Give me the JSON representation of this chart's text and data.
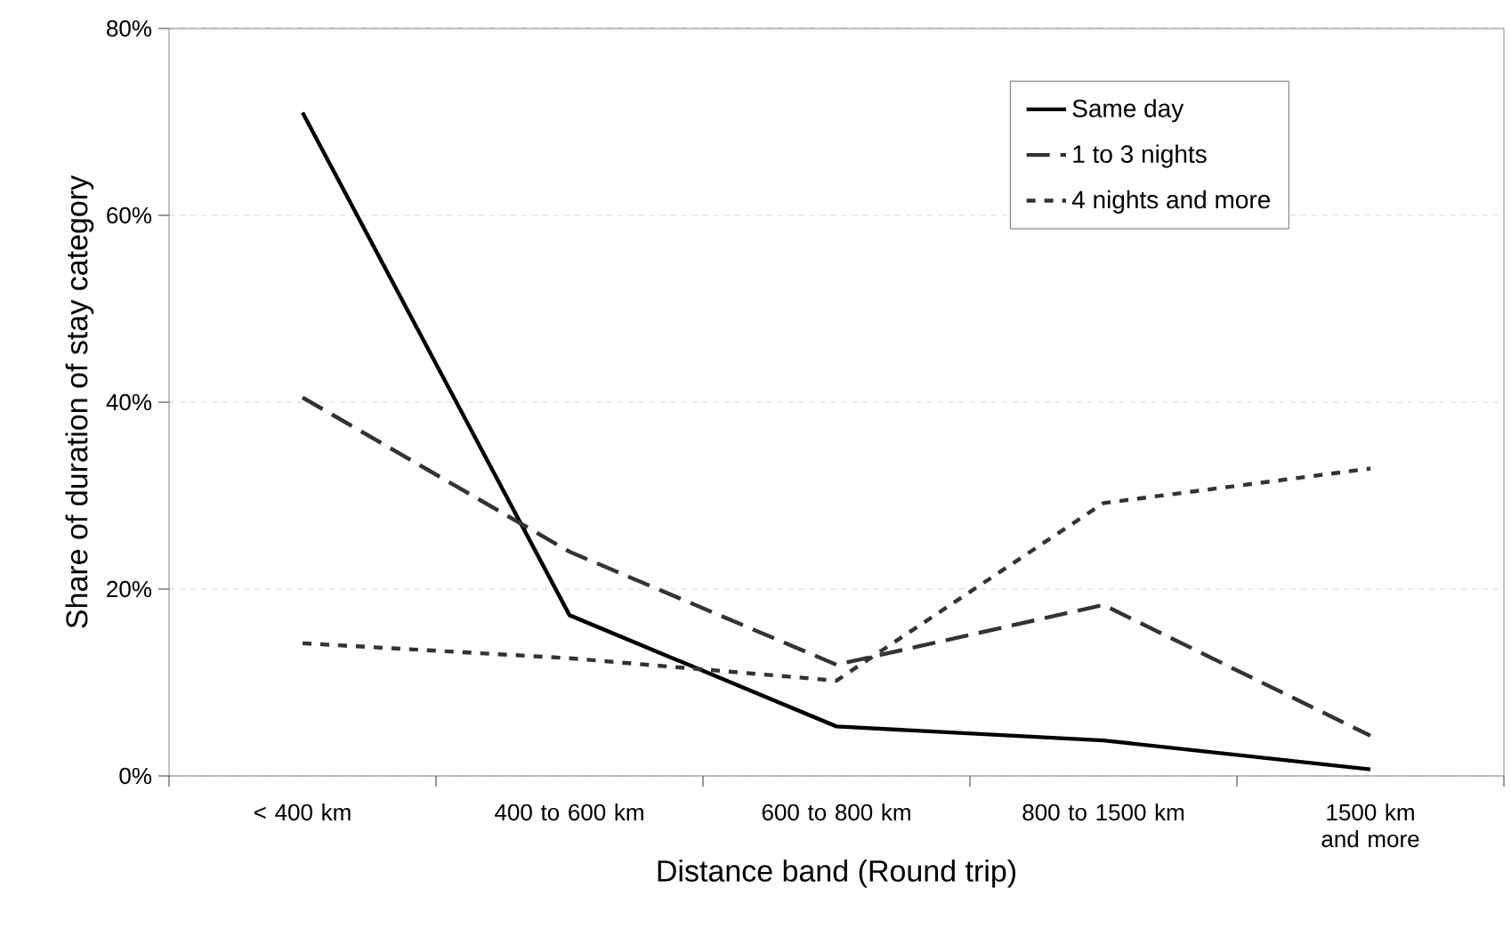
{
  "chart_data": {
    "type": "line",
    "xlabel": "Distance band (Round trip)",
    "ylabel": "Share of duration of stay category",
    "categories": [
      "< 400 km",
      "400 to 600 km",
      "600 to 800 km",
      "800 to 1500 km",
      "1500 km and more"
    ],
    "series": [
      {
        "name": "Same day",
        "color": "#000000",
        "line_style": "solid",
        "values": [
          71.0,
          17.2,
          5.3,
          3.8,
          0.7
        ]
      },
      {
        "name": "1 to 3 nights",
        "color": "#333333",
        "line_style": "dashed",
        "values": [
          40.5,
          24.0,
          11.9,
          18.3,
          4.3
        ]
      },
      {
        "name": "4 nights and more",
        "color": "#333333",
        "line_style": "dotted",
        "values": [
          14.2,
          12.6,
          10.2,
          29.2,
          32.9
        ]
      }
    ],
    "ylim": [
      0,
      80
    ],
    "yticks": [
      {
        "value": 0,
        "label": "0%"
      },
      {
        "value": 20,
        "label": "20%"
      },
      {
        "value": 40,
        "label": "40%"
      },
      {
        "value": 60,
        "label": "60%"
      },
      {
        "value": 80,
        "label": "80%"
      }
    ],
    "grid": "y",
    "legend": "top right",
    "marker": "none"
  }
}
